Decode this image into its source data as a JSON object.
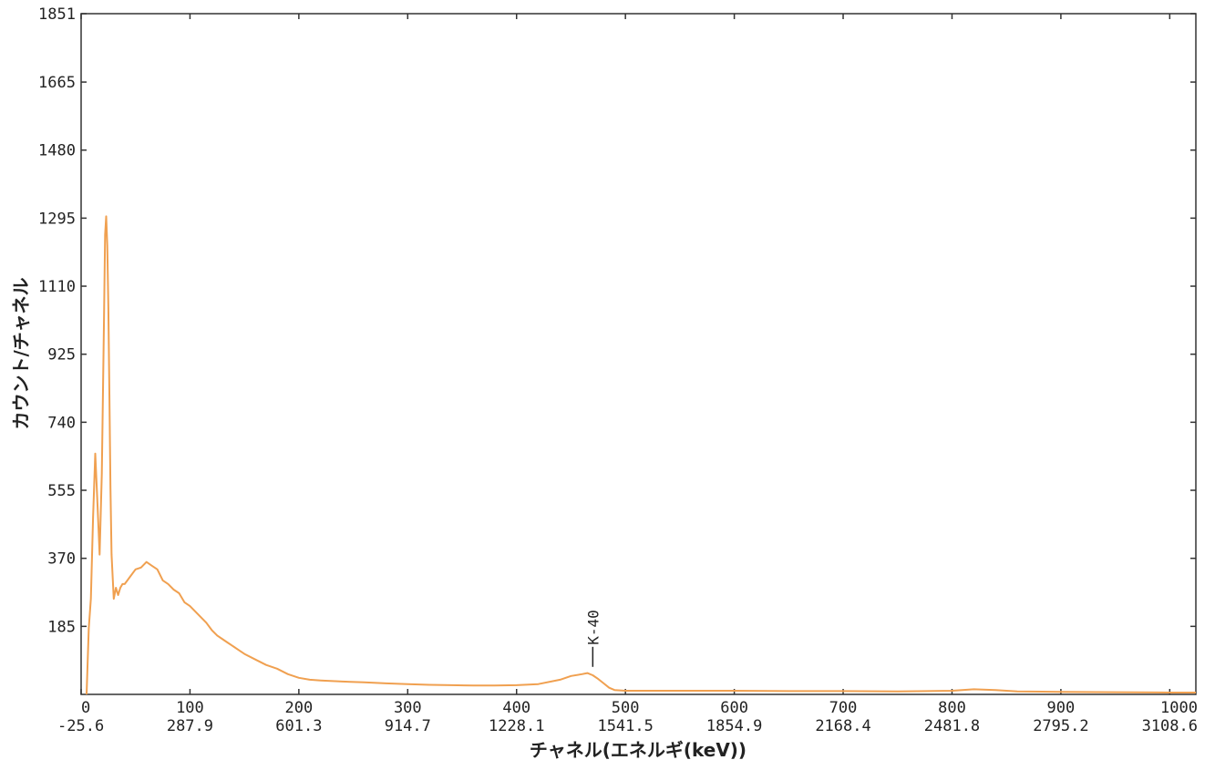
{
  "chart_data": {
    "type": "line",
    "title": "",
    "xlabel": "チャネル(エネルギ(keV))",
    "ylabel": "カウント/チャネル",
    "xlim": [
      0,
      1024
    ],
    "ylim": [
      0,
      1851
    ],
    "x_ticks": [
      0,
      100,
      200,
      300,
      400,
      500,
      600,
      700,
      800,
      900,
      1000
    ],
    "x_energy_labels": [
      "-25.6",
      "287.9",
      "601.3",
      "914.7",
      "1228.1",
      "1541.5",
      "1854.9",
      "2168.4",
      "2481.8",
      "2795.2",
      "3108.6"
    ],
    "y_ticks": [
      185,
      370,
      555,
      740,
      925,
      1110,
      1295,
      1480,
      1665,
      1851
    ],
    "grid": false,
    "legend": "none",
    "line_color": "#f0a050",
    "series": [
      {
        "x": [
          5,
          7,
          9,
          11,
          13,
          15,
          17,
          19,
          21,
          22,
          23,
          24,
          25,
          26,
          27,
          28,
          30,
          32,
          34,
          36,
          38,
          40,
          45,
          50,
          55,
          60,
          65,
          70,
          75,
          80,
          85,
          90,
          95,
          100,
          105,
          110,
          115,
          120,
          125,
          130,
          135,
          140,
          145,
          150,
          160,
          170,
          180,
          190,
          200,
          210,
          220,
          240,
          260,
          280,
          300,
          320,
          340,
          360,
          380,
          400,
          420,
          440,
          450,
          460,
          465,
          470,
          475,
          480,
          485,
          490,
          500,
          520,
          550,
          600,
          650,
          700,
          750,
          800,
          820,
          840,
          850,
          860,
          900,
          950,
          1000,
          1024
        ],
        "y": [
          0,
          180,
          260,
          480,
          655,
          520,
          380,
          600,
          1020,
          1250,
          1300,
          1220,
          1050,
          800,
          560,
          380,
          260,
          290,
          270,
          290,
          300,
          300,
          320,
          340,
          345,
          360,
          350,
          340,
          310,
          300,
          285,
          275,
          250,
          240,
          225,
          210,
          195,
          175,
          160,
          150,
          140,
          130,
          120,
          110,
          95,
          80,
          70,
          55,
          45,
          40,
          38,
          35,
          33,
          30,
          28,
          26,
          25,
          24,
          24,
          25,
          28,
          40,
          50,
          55,
          58,
          52,
          42,
          30,
          18,
          12,
          10,
          10,
          10,
          10,
          9,
          9,
          8,
          10,
          14,
          12,
          10,
          8,
          7,
          6,
          5,
          5
        ]
      }
    ],
    "annotations": [
      {
        "text": "K-40",
        "x": 470,
        "y": 55
      }
    ]
  }
}
